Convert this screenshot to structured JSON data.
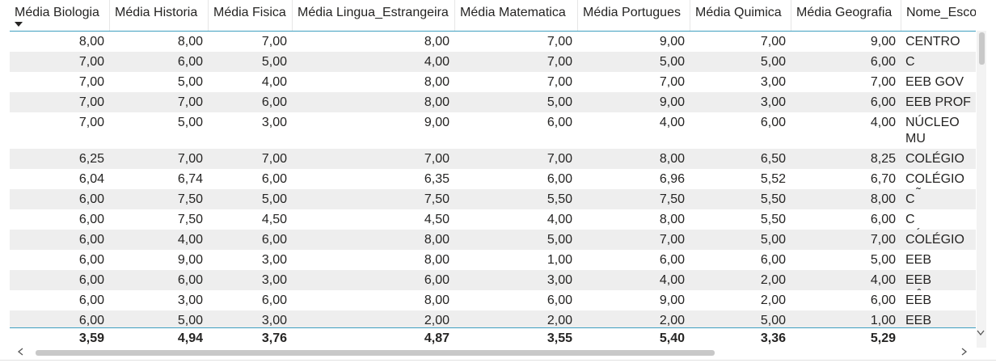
{
  "table": {
    "headers": [
      "Média Biologia",
      "Média Historia",
      "Média Fisica",
      "Média Lingua_Estrangeira",
      "Média Matematica",
      "Média Portugues",
      "Média Quimica",
      "Média Geografia",
      "Nome_Escol"
    ],
    "rows": [
      [
        "8,00",
        "8,00",
        "7,00",
        "8,00",
        "7,00",
        "9,00",
        "7,00",
        "9,00",
        "CENTRO EN"
      ],
      [
        "7,00",
        "6,00",
        "5,00",
        "4,00",
        "7,00",
        "5,00",
        "5,00",
        "6,00",
        "C CENECISTA"
      ],
      [
        "7,00",
        "5,00",
        "4,00",
        "8,00",
        "7,00",
        "7,00",
        "3,00",
        "7,00",
        "EEB GOV HI"
      ],
      [
        "7,00",
        "7,00",
        "6,00",
        "8,00",
        "5,00",
        "9,00",
        "3,00",
        "6,00",
        "EEB PROF BA"
      ],
      [
        "7,00",
        "5,00",
        "3,00",
        "9,00",
        "6,00",
        "4,00",
        "6,00",
        "4,00",
        "NÚCLEO MU AGOSTINI"
      ],
      [
        "6,25",
        "7,00",
        "7,00",
        "7,00",
        "7,00",
        "8,00",
        "6,50",
        "8,25",
        "COLÉGIO DE"
      ],
      [
        "6,04",
        "6,74",
        "6,00",
        "6,35",
        "6,00",
        "6,96",
        "5,52",
        "6,70",
        "COLÉGIO SÃ"
      ],
      [
        "6,00",
        "7,50",
        "5,00",
        "7,50",
        "5,50",
        "7,50",
        "5,50",
        "8,00",
        "C CENECISTA"
      ],
      [
        "6,00",
        "7,50",
        "4,50",
        "4,50",
        "4,00",
        "8,00",
        "5,50",
        "6,00",
        "C TÉCNICO"
      ],
      [
        "6,00",
        "4,00",
        "6,00",
        "8,00",
        "5,00",
        "7,00",
        "5,00",
        "7,00",
        "COLÉGIO DE"
      ],
      [
        "6,00",
        "9,00",
        "3,00",
        "8,00",
        "1,00",
        "6,00",
        "6,00",
        "5,00",
        "EEB ADOLFO"
      ],
      [
        "6,00",
        "6,00",
        "3,00",
        "6,00",
        "3,00",
        "4,00",
        "2,00",
        "4,00",
        "EEB CÂNDID"
      ],
      [
        "6,00",
        "3,00",
        "6,00",
        "8,00",
        "6,00",
        "9,00",
        "2,00",
        "6,00",
        "EEB MARTIN"
      ],
      [
        "6,00",
        "5,00",
        "3,00",
        "2,00",
        "2,00",
        "2,00",
        "5,00",
        "1,00",
        "EEB ROSINA"
      ]
    ],
    "totals": [
      "3,59",
      "4,94",
      "3,76",
      "4,87",
      "3,55",
      "5,40",
      "3,36",
      "5,29"
    ]
  }
}
